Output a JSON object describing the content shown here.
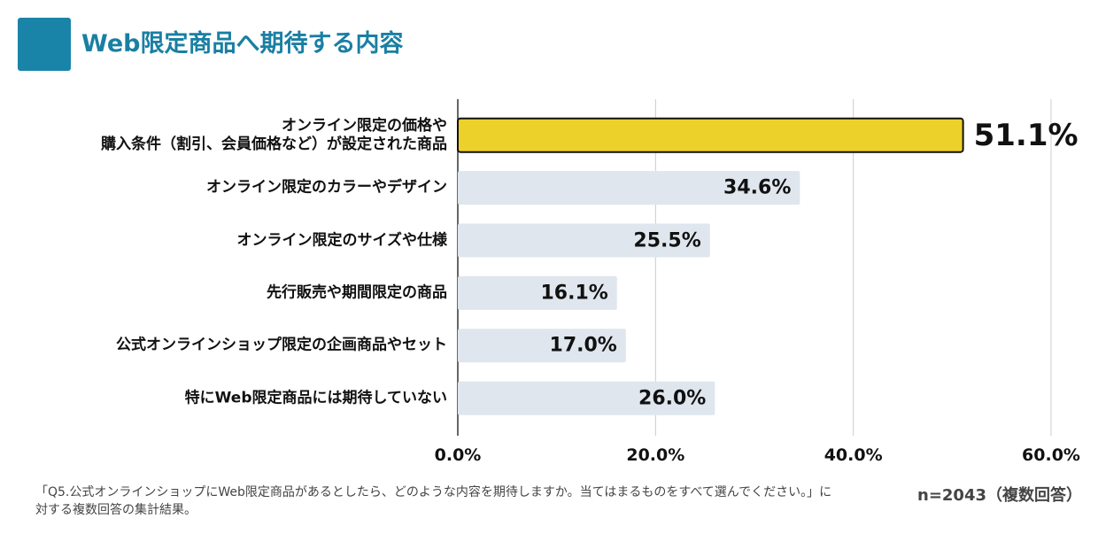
{
  "chart_data": {
    "type": "bar",
    "orientation": "horizontal",
    "title": "Web限定商品へ期待する内容",
    "categories": [
      "オンライン限定の価格や\n購入条件（割引、会員価格など）が設定された商品",
      "オンライン限定のカラーやデザイン",
      "オンライン限定のサイズや仕様",
      "先行販売や期間限定の商品",
      "公式オンラインショップ限定の企画商品やセット",
      "特にWeb限定商品には期待していない"
    ],
    "values": [
      51.1,
      34.6,
      25.5,
      16.1,
      17.0,
      26.0
    ],
    "value_labels": [
      "51.1%",
      "34.6%",
      "25.5%",
      "16.1%",
      "17.0%",
      "26.0%"
    ],
    "colors": [
      "#ecd12a",
      "#dfe6ee",
      "#dfe6ee",
      "#dfe6ee",
      "#dfe6ee",
      "#dfe6ee"
    ],
    "xlim": [
      0,
      60
    ],
    "xticks": [
      {
        "value": 0,
        "label": "0.0%"
      },
      {
        "value": 20,
        "label": "20.0%"
      },
      {
        "value": 40,
        "label": "40.0%"
      },
      {
        "value": 60,
        "label": "60.0%"
      }
    ],
    "grid": true,
    "footnote": "「Q5.公式オンラインショップにWeb限定商品があるとしたら、どのような内容を期待しますか。当てはまるものをすべて選んでください。」に対する複数回答の集計結果。",
    "sample_note": "n=2043（複数回答）"
  }
}
